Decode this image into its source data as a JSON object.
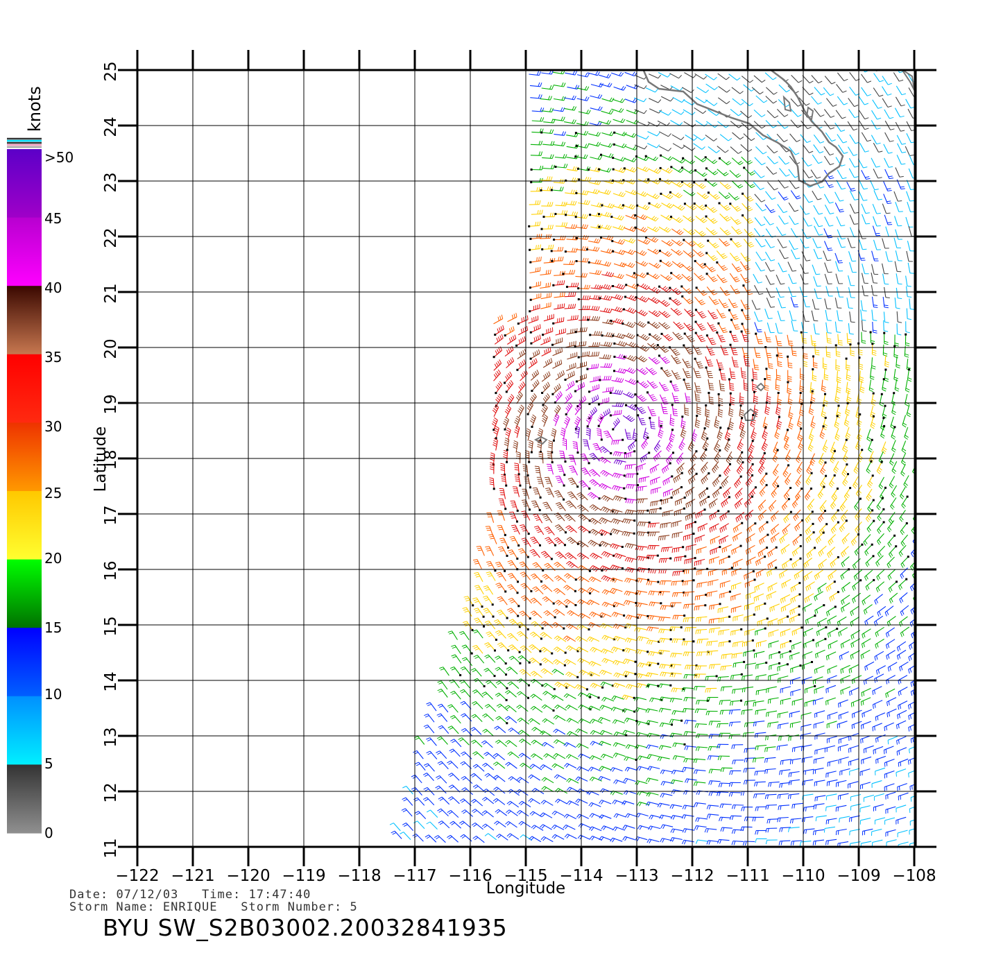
{
  "colorbar": {
    "unit_label": "knots",
    "tick_labels": [
      ">50",
      "45",
      "40",
      "35",
      "30",
      "25",
      "20",
      "15",
      "10",
      "5",
      "0"
    ],
    "stops": [
      {
        "from": 0,
        "to": 5,
        "top": "#333333",
        "bottom": "#909090"
      },
      {
        "from": 5,
        "to": 10,
        "top": "#0090ff",
        "bottom": "#00f0ff"
      },
      {
        "from": 10,
        "to": 15,
        "top": "#0000ff",
        "bottom": "#0060ff"
      },
      {
        "from": 15,
        "to": 20,
        "top": "#00ff00",
        "bottom": "#007000"
      },
      {
        "from": 20,
        "to": 25,
        "top": "#ffc800",
        "bottom": "#ffff30"
      },
      {
        "from": 25,
        "to": 30,
        "top": "#ee3300",
        "bottom": "#ff9900"
      },
      {
        "from": 30,
        "to": 35,
        "top": "#ff0000",
        "bottom": "#ff2a10"
      },
      {
        "from": 35,
        "to": 40,
        "top": "#3a0800",
        "bottom": "#c87850"
      },
      {
        "from": 40,
        "to": 45,
        "top": "#b800d0",
        "bottom": "#ff00ff"
      },
      {
        "from": 45,
        "to": 50,
        "top": "#5c00c8",
        "bottom": "#a000c8"
      }
    ]
  },
  "chart_data": {
    "type": "wind-barb map",
    "xlabel": "Longitude",
    "ylabel": "Latitude",
    "xlim": [
      -122,
      -107.5
    ],
    "ylim": [
      11,
      25
    ],
    "x_ticks": [
      -122,
      -121,
      -120,
      -119,
      -118,
      -117,
      -116,
      -115,
      -114,
      -113,
      -112,
      -111,
      -110,
      -109,
      -108
    ],
    "y_ticks": [
      11,
      12,
      13,
      14,
      15,
      16,
      17,
      18,
      19,
      20,
      21,
      22,
      23,
      24,
      25
    ],
    "grid": true,
    "storm_center": {
      "lon": -113.3,
      "lat": 18.5
    },
    "max_wind_knots": 50
  },
  "footer": {
    "date_label": "Date:",
    "date": "07/12/03",
    "time_label": "Time:",
    "time": "17:47:40",
    "storm_name_label": "Storm Name:",
    "storm_name": "ENRIQUE",
    "storm_number_label": "Storm Number:",
    "storm_number": "5",
    "file_label": "BYU SW_S2B03002.20032841935"
  }
}
